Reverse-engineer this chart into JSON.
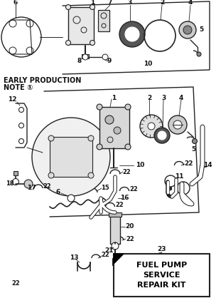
{
  "background_color": "#ffffff",
  "line_color": "#222222",
  "text_color": "#111111",
  "early_production_text": [
    "EARLY PRODUCTION",
    "NOTE ①"
  ],
  "service_box_text": [
    "FUEL PUMP",
    "SERVICE",
    "REPAIR KIT"
  ],
  "figsize": [
    3.04,
    4.18
  ],
  "dpi": 100
}
